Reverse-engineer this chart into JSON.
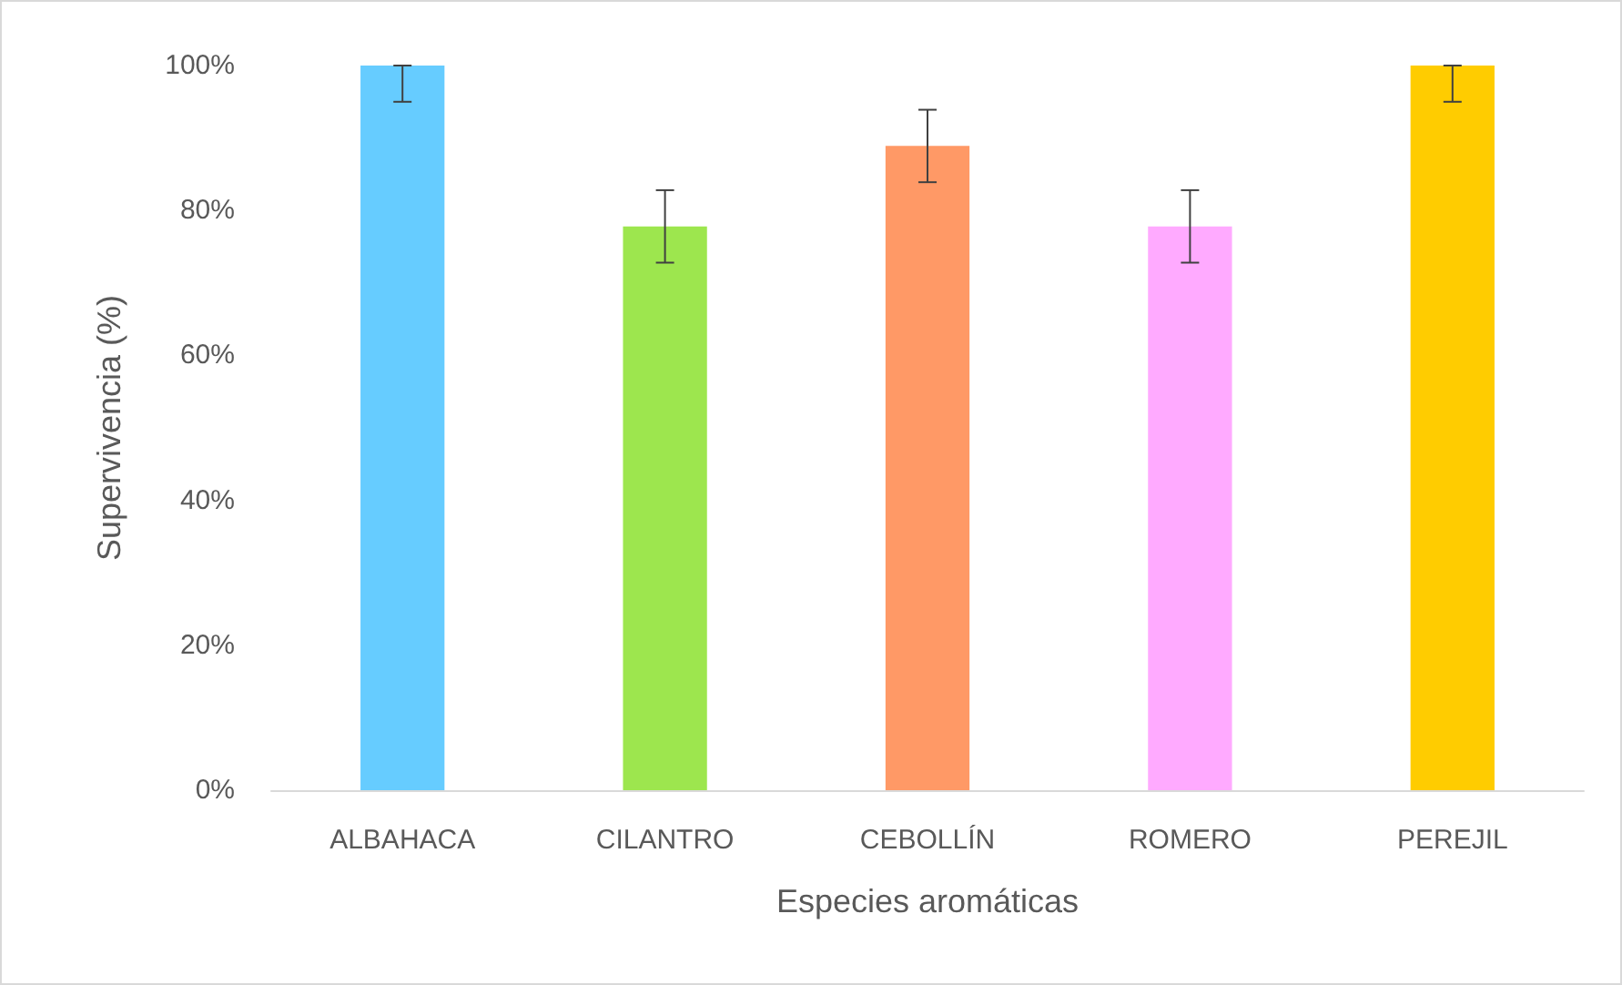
{
  "chart_data": {
    "type": "bar",
    "xlabel": "Especies aromáticas",
    "ylabel": "Supervivencia (%)",
    "categories": [
      "ALBAHACA",
      "CILANTRO",
      "CEBOLLÍN",
      "ROMERO",
      "PEREJIL"
    ],
    "values": [
      100,
      77.8,
      88.9,
      77.8,
      100
    ],
    "colors": [
      "#66ccff",
      "#9de64e",
      "#ff9966",
      "#ffaaff",
      "#ffcc00"
    ],
    "errors": [
      [
        95,
        100
      ],
      5,
      5,
      5,
      [
        95,
        100
      ]
    ],
    "ylim": [
      0,
      100
    ],
    "yticks": [
      {
        "value": 0,
        "label": "0%"
      },
      {
        "value": 20,
        "label": "20%"
      },
      {
        "value": 40,
        "label": "40%"
      },
      {
        "value": 60,
        "label": "60%"
      },
      {
        "value": 80,
        "label": "80%"
      },
      {
        "value": 100,
        "label": "100%"
      }
    ],
    "grid": false
  }
}
